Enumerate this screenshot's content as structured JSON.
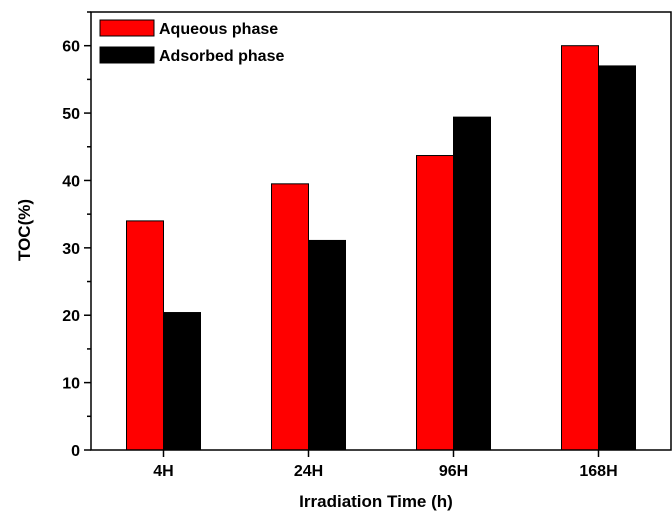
{
  "chart_data": {
    "type": "bar",
    "title": "",
    "xlabel": "Irradiation Time (h)",
    "ylabel": "TOC(%)",
    "categories": [
      "4H",
      "24H",
      "96H",
      "168H"
    ],
    "series": [
      {
        "name": "Aqueous phase",
        "values": [
          34,
          39.5,
          43.7,
          60
        ],
        "color": "#ff0000"
      },
      {
        "name": "Adsorbed phase",
        "values": [
          20.4,
          31.1,
          49.4,
          57
        ],
        "color": "#000000"
      }
    ],
    "ylim": [
      0,
      65
    ],
    "yticks": [
      0,
      10,
      20,
      30,
      40,
      50,
      60
    ],
    "grid": false,
    "legend_position": "top-left"
  }
}
